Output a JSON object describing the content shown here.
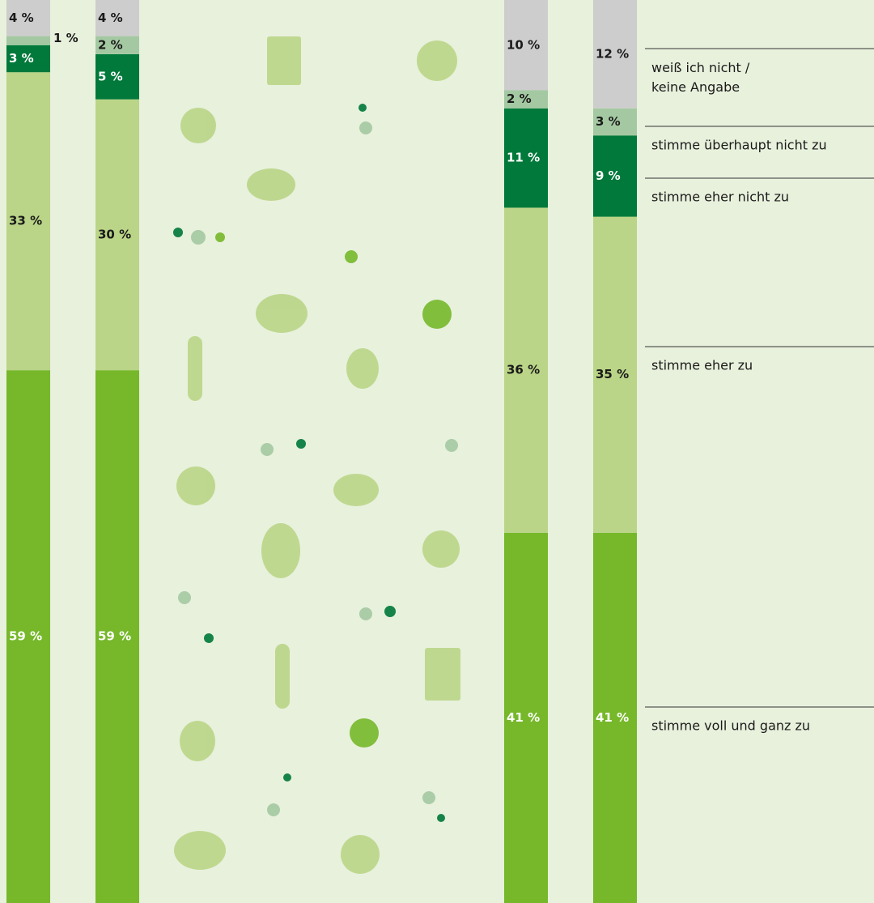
{
  "chart_data": {
    "type": "bar",
    "stacked": true,
    "orientation": "vertical",
    "categories": [
      null,
      null,
      null,
      null
    ],
    "ylim": [
      0,
      100
    ],
    "series": [
      {
        "name": "stimme voll und ganz zu",
        "color": "#76b82a",
        "values": [
          59,
          59,
          41,
          41
        ],
        "value_labels": [
          "59 %",
          "59 %",
          "41 %",
          "41 %"
        ]
      },
      {
        "name": "stimme eher zu",
        "color": "#bad587",
        "values": [
          33,
          30,
          36,
          35
        ],
        "value_labels": [
          "33 %",
          "30 %",
          "36 %",
          "35 %"
        ]
      },
      {
        "name": "stimme eher nicht zu",
        "color": "#00793a",
        "values": [
          3,
          5,
          11,
          9
        ],
        "value_labels": [
          "3 %",
          "5 %",
          "11 %",
          "9 %"
        ]
      },
      {
        "name": "stimme überhaupt nicht zu",
        "color": "#a4c9a2",
        "values": [
          1,
          2,
          2,
          3
        ],
        "value_labels": [
          "1 %",
          "2 %",
          "2 %",
          "3 %"
        ]
      },
      {
        "name": "weiß ich nicht / keine Angabe",
        "color": "#cdcdcd",
        "values": [
          4,
          4,
          10,
          12
        ],
        "value_labels": [
          "4 %",
          "4 %",
          "10 %",
          "12 %"
        ]
      }
    ]
  }
}
